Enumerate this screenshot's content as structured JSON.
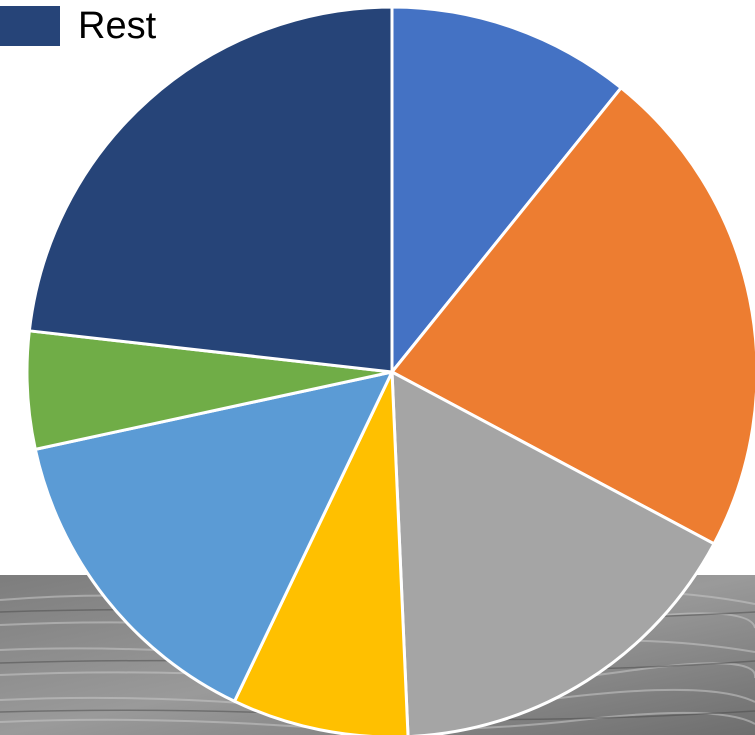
{
  "chart_data": {
    "type": "pie",
    "slices": [
      {
        "name": "",
        "value": 10.8,
        "color": "#4472C4"
      },
      {
        "name": "",
        "value": 22.0,
        "color": "#ED7D31"
      },
      {
        "name": "",
        "value": 16.5,
        "color": "#A5A5A5"
      },
      {
        "name": "",
        "value": 7.8,
        "color": "#FFC000"
      },
      {
        "name": "",
        "value": 14.5,
        "color": "#5B9BD5"
      },
      {
        "name": "",
        "value": 5.2,
        "color": "#70AD47"
      },
      {
        "name": "Rest",
        "value": 23.2,
        "color": "#264478"
      }
    ],
    "legend": {
      "position": "top-left",
      "entries": [
        {
          "label": "Rest",
          "color": "#264478"
        }
      ]
    },
    "start_angle_deg": 0,
    "direction": "clockwise"
  }
}
